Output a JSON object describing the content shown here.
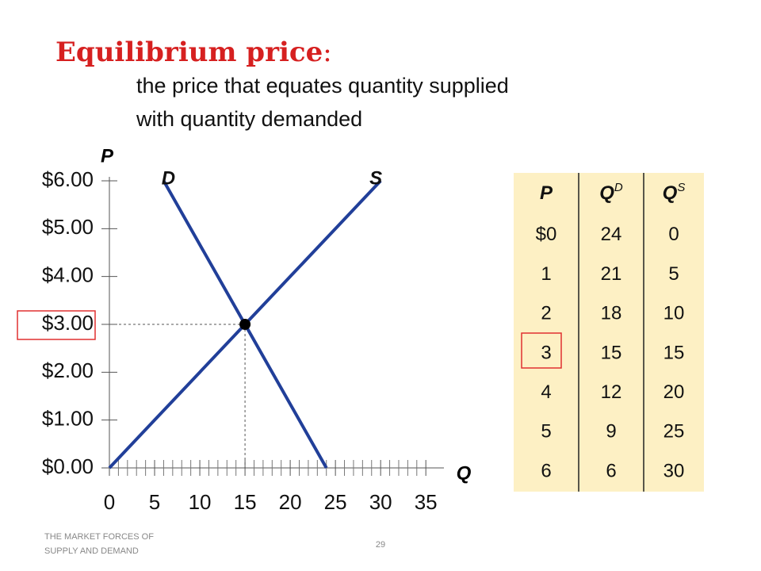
{
  "slide": {
    "title": "Equilibrium price",
    "title_suffix": ":",
    "definition": [
      "the price that equates quantity supplied",
      "with quantity demanded"
    ],
    "footer": [
      "THE MARKET FORCES OF",
      "SUPPLY AND DEMAND"
    ],
    "page_number": 29
  },
  "chart_data": {
    "type": "line",
    "y_label": "P",
    "x_label": "Q",
    "xlim": [
      0,
      37
    ],
    "xticks": [
      0,
      5,
      10,
      15,
      20,
      25,
      30,
      35
    ],
    "ylim": [
      0,
      6
    ],
    "yticks": [
      {
        "value": 0,
        "label": "$0.00"
      },
      {
        "value": 1,
        "label": "$1.00"
      },
      {
        "value": 2,
        "label": "$2.00"
      },
      {
        "value": 3,
        "label": "$3.00"
      },
      {
        "value": 4,
        "label": "$4.00"
      },
      {
        "value": 5,
        "label": "$5.00"
      },
      {
        "value": 6,
        "label": "$6.00"
      }
    ],
    "series": [
      {
        "name": "D",
        "color": "#213f99",
        "x": [
          24,
          21,
          18,
          15,
          12,
          9,
          6
        ],
        "values": [
          0,
          1,
          2,
          3,
          4,
          5,
          6
        ]
      },
      {
        "name": "S",
        "color": "#213f99",
        "x": [
          0,
          5,
          10,
          15,
          20,
          25,
          30
        ],
        "values": [
          0,
          1,
          2,
          3,
          4,
          5,
          6
        ]
      }
    ],
    "equilibrium": {
      "x": 15,
      "y": 3,
      "color": "#000000"
    }
  },
  "table": {
    "header": [
      {
        "text": "P"
      },
      {
        "text": "Q",
        "sup": "D"
      },
      {
        "text": "Q",
        "sup": "S"
      }
    ],
    "rows": [
      [
        "$0",
        24,
        0
      ],
      [
        1,
        21,
        5
      ],
      [
        2,
        18,
        10
      ],
      [
        3,
        15,
        15
      ],
      [
        4,
        12,
        20
      ],
      [
        5,
        9,
        25
      ],
      [
        6,
        6,
        30
      ]
    ],
    "background": "#fdf0c4"
  }
}
